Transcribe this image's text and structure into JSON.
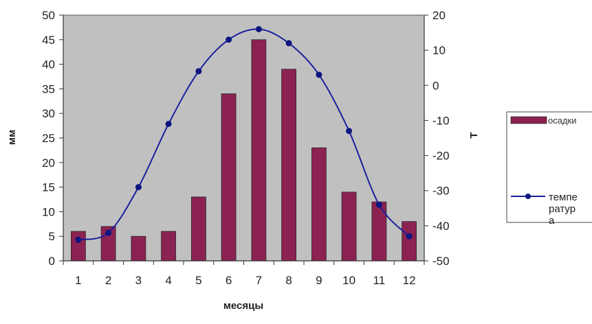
{
  "chart_data": {
    "type": "bar+line",
    "categories": [
      "1",
      "2",
      "3",
      "4",
      "5",
      "6",
      "7",
      "8",
      "9",
      "10",
      "11",
      "12"
    ],
    "series": [
      {
        "name": "осадки",
        "type": "bar",
        "axis": "left",
        "values": [
          6,
          7,
          5,
          6,
          13,
          34,
          45,
          39,
          23,
          14,
          12,
          8
        ]
      },
      {
        "name": "температура",
        "type": "line",
        "axis": "right",
        "values": [
          -44,
          -42,
          -29,
          -11,
          4,
          13,
          16,
          12,
          3,
          -13,
          -34,
          -43
        ]
      }
    ],
    "xlabel": "месяцы",
    "ylabel": "мм",
    "y2label": "Т",
    "ylim": [
      0,
      50
    ],
    "y2lim": [
      -50,
      20
    ],
    "yticks": [
      "0",
      "5",
      "10",
      "15",
      "20",
      "25",
      "30",
      "35",
      "40",
      "45",
      "50"
    ],
    "y2ticks": [
      "-50",
      "-40",
      "-30",
      "-20",
      "-10",
      "0",
      "10",
      "20"
    ],
    "legend": {
      "position": "right",
      "bar_label": "осадки",
      "line_label_lines": [
        "темпе",
        "ратур",
        "а"
      ]
    },
    "colors": {
      "plot_bg": "#c0c0c0",
      "bar_fill": "#8b2252",
      "line": "#1a1f9e",
      "marker": "#0d1580"
    },
    "grid": false
  }
}
